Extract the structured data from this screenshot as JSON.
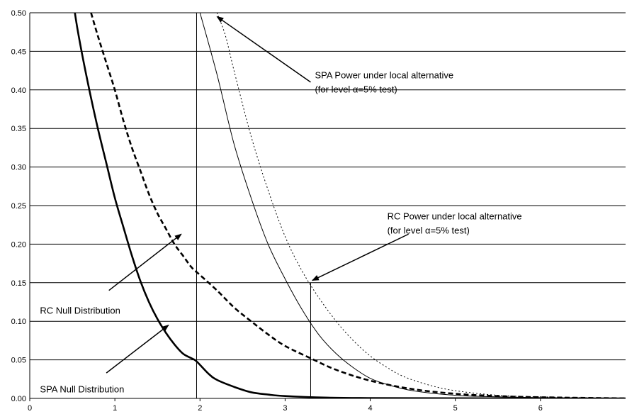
{
  "chart_data": {
    "type": "line",
    "title": "",
    "xlabel": "",
    "ylabel": "",
    "xlim": [
      0,
      7
    ],
    "ylim": [
      0,
      0.5
    ],
    "grid": "horizontal",
    "x_ticks": [
      "0",
      "1",
      "2",
      "3",
      "4",
      "5",
      "6"
    ],
    "y_ticks": [
      "0.00",
      "0.05",
      "0.10",
      "0.15",
      "0.20",
      "0.25",
      "0.30",
      "0.35",
      "0.40",
      "0.45",
      "0.50"
    ],
    "series": [
      {
        "name": "SPA Null Distribution",
        "style": "thick-solid",
        "x": [
          0.45,
          0.53,
          0.6,
          0.7,
          0.8,
          0.9,
          1.0,
          1.1,
          1.2,
          1.3,
          1.4,
          1.5,
          1.6,
          1.7,
          1.8,
          1.9,
          1.96,
          2.1,
          2.2,
          2.4,
          2.6,
          2.8,
          3.0,
          3.5,
          4.0,
          5.0,
          7.0
        ],
        "y": [
          0.57,
          0.5,
          0.455,
          0.4,
          0.35,
          0.305,
          0.26,
          0.222,
          0.185,
          0.152,
          0.125,
          0.103,
          0.085,
          0.07,
          0.058,
          0.052,
          0.048,
          0.032,
          0.024,
          0.015,
          0.008,
          0.005,
          0.003,
          0.001,
          0.0005,
          0.0002,
          0.0
        ]
      },
      {
        "name": "RC Null Distribution",
        "style": "thick-dashed",
        "x": [
          0.72,
          0.8,
          0.9,
          1.0,
          1.1,
          1.2,
          1.3,
          1.4,
          1.5,
          1.6,
          1.7,
          1.8,
          1.9,
          2.0,
          2.2,
          2.4,
          2.6,
          2.8,
          3.0,
          3.3,
          3.6,
          4.0,
          4.5,
          5.0,
          5.5,
          6.0,
          7.0
        ],
        "y": [
          0.5,
          0.47,
          0.435,
          0.4,
          0.36,
          0.325,
          0.295,
          0.265,
          0.24,
          0.22,
          0.2,
          0.185,
          0.17,
          0.16,
          0.14,
          0.118,
          0.1,
          0.083,
          0.068,
          0.052,
          0.037,
          0.023,
          0.012,
          0.006,
          0.003,
          0.0015,
          0.0
        ]
      },
      {
        "name": "RC Power under local alternative",
        "style": "thin-solid",
        "x": [
          2.0,
          2.2,
          2.4,
          2.6,
          2.8,
          3.0,
          3.2,
          3.4,
          3.6,
          3.8,
          4.0,
          4.2,
          4.5,
          5.0,
          5.5,
          6.0,
          7.0
        ],
        "y": [
          0.5,
          0.42,
          0.33,
          0.26,
          0.2,
          0.155,
          0.115,
          0.082,
          0.058,
          0.04,
          0.026,
          0.018,
          0.01,
          0.004,
          0.002,
          0.001,
          0.0
        ]
      },
      {
        "name": "SPA Power under local alternative",
        "style": "thin-dotted",
        "x": [
          2.2,
          2.3,
          2.4,
          2.6,
          2.8,
          3.0,
          3.2,
          3.4,
          3.6,
          3.8,
          4.0,
          4.2,
          4.4,
          4.7,
          5.0,
          5.5,
          6.0,
          7.0
        ],
        "y": [
          0.5,
          0.47,
          0.425,
          0.34,
          0.27,
          0.21,
          0.165,
          0.13,
          0.1,
          0.075,
          0.055,
          0.04,
          0.028,
          0.017,
          0.01,
          0.004,
          0.002,
          0.0
        ]
      }
    ],
    "critical_lines": [
      {
        "x": 1.96,
        "y_top": 0.5
      },
      {
        "x": 3.3,
        "y_top": 0.15
      }
    ],
    "annotations": [
      {
        "lines": [
          "SPA Power under local alternative",
          "(for level α=5% test)"
        ],
        "text_at": [
          3.35,
          0.415
        ],
        "arrow_from": [
          3.3,
          0.41
        ],
        "arrow_to": [
          2.2,
          0.495
        ]
      },
      {
        "lines": [
          "RC Power under local alternative",
          "(for level α=5% test)"
        ],
        "text_at": [
          4.2,
          0.232
        ],
        "arrow_from": [
          4.45,
          0.213
        ],
        "arrow_to": [
          3.32,
          0.153
        ]
      },
      {
        "lines": [
          "RC Null Distribution"
        ],
        "text_at": [
          0.12,
          0.11
        ],
        "arrow_from": [
          0.93,
          0.14
        ],
        "arrow_to": [
          1.78,
          0.213
        ]
      },
      {
        "lines": [
          "SPA Null Distribution"
        ],
        "text_at": [
          0.12,
          0.008
        ],
        "arrow_from": [
          0.9,
          0.033
        ],
        "arrow_to": [
          1.63,
          0.095
        ]
      }
    ]
  }
}
